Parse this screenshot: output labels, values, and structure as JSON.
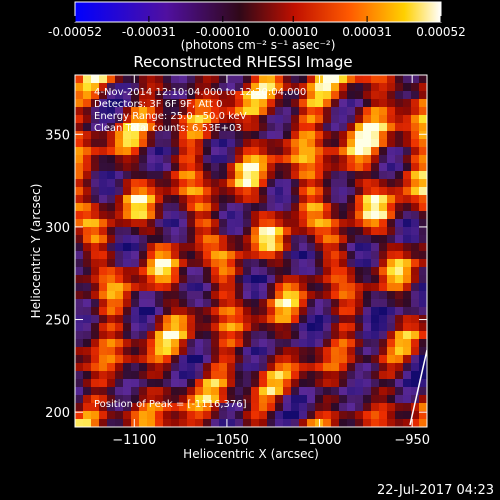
{
  "colorbar": {
    "ticks": [
      "-0.00052",
      "-0.00031",
      "-0.00010",
      "0.00010",
      "0.00031",
      "0.00052"
    ],
    "tick_values": [
      -0.00052,
      -0.00031,
      -0.0001,
      0.0001,
      0.00031,
      0.00052
    ],
    "range": [
      -0.00052,
      0.00052
    ],
    "unit_label": "(photons cm⁻² s⁻¹ asec⁻²)"
  },
  "chart_data": {
    "type": "heatmap",
    "title": "Reconstructed RHESSI Image",
    "xlabel": "Heliocentric X (arcsec)",
    "ylabel": "Heliocentric Y (arcsec)",
    "xlim": [
      -1132,
      -942
    ],
    "ylim": [
      192,
      382
    ],
    "xticks": [
      -1100,
      -1050,
      -1000,
      -950
    ],
    "yticks": [
      200,
      250,
      300,
      350
    ],
    "xtick_labels": [
      "−1100",
      "−1050",
      "−1000",
      "−950"
    ],
    "ytick_labels": [
      "200",
      "250",
      "300",
      "350"
    ],
    "colormap": "blue-purple-red-yellow-white",
    "annotations": {
      "time_range": "4-Nov-2014 12:10:04.000 to 12:20:04.000",
      "detectors": "Detectors: 3F 6F 9F, Att 0",
      "energy": "Energy Range: 25.0 - 50.0 keV",
      "clean": "Clean    Total counts: 6.53E+03",
      "peak": "Position of Peak = [-1116,376]"
    },
    "peak_position": [
      -1116,
      376
    ]
  },
  "footer": {
    "date": "22-Jul-2017 04:23"
  }
}
